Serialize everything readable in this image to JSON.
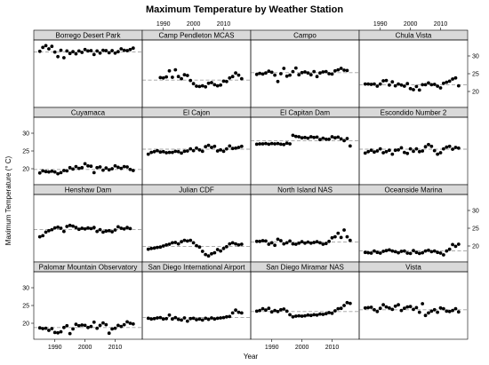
{
  "chart_data": {
    "type": "scatter",
    "title": "Maximum Temperature by Weather Station",
    "xlabel": "Year",
    "ylabel": "Maximum Temperature (° C)",
    "xlim": [
      1983,
      2019
    ],
    "ylim": [
      15.5,
      34.5
    ],
    "x_ticks": [
      1990,
      2000,
      2010
    ],
    "y_ticks": [
      20,
      25,
      30
    ],
    "layout": {
      "columns": 4,
      "rows": 4,
      "panel_order": "row-major from top-left"
    },
    "x": [
      1985,
      1986,
      1987,
      1988,
      1989,
      1990,
      1991,
      1992,
      1993,
      1994,
      1995,
      1996,
      1997,
      1998,
      1999,
      2000,
      2001,
      2002,
      2003,
      2004,
      2005,
      2006,
      2007,
      2008,
      2009,
      2010,
      2011,
      2012,
      2013,
      2014,
      2015,
      2016
    ],
    "panels": [
      {
        "name": "Borrego Desert Park",
        "mean": 31.1,
        "values": [
          31.3,
          32.4,
          32.9,
          32.0,
          32.7,
          31.1,
          29.8,
          31.6,
          29.5,
          31.4,
          30.7,
          31.2,
          30.6,
          31.4,
          31.0,
          31.8,
          31.4,
          31.5,
          30.4,
          31.4,
          30.8,
          31.6,
          31.5,
          30.9,
          31.5,
          30.8,
          31.2,
          32.0,
          31.6,
          31.5,
          31.8,
          32.2
        ]
      },
      {
        "name": "Camp Pendleton MCAS",
        "mean": 23.2,
        "values": [
          null,
          null,
          null,
          null,
          23.9,
          23.8,
          24.1,
          25.8,
          24.0,
          26.1,
          24.2,
          23.6,
          24.7,
          24.5,
          23.1,
          22.2,
          21.5,
          21.4,
          21.6,
          21.3,
          22.3,
          22.5,
          21.9,
          21.6,
          21.8,
          22.9,
          22.8,
          23.8,
          24.2,
          25.2,
          24.6,
          23.6
        ]
      },
      {
        "name": "Campo",
        "mean": 25.3,
        "values": [
          24.8,
          25.1,
          24.9,
          25.2,
          25.7,
          25.4,
          24.6,
          22.8,
          25.0,
          26.5,
          24.3,
          24.6,
          25.6,
          26.6,
          24.7,
          25.3,
          25.5,
          25.2,
          24.7,
          25.6,
          24.2,
          25.2,
          25.5,
          25.6,
          25.0,
          24.9,
          25.8,
          26.1,
          26.5,
          26.0,
          25.9,
          null
        ]
      },
      {
        "name": "Chula Vista",
        "mean": 21.9,
        "values": [
          22.1,
          22.1,
          22.0,
          22.1,
          21.5,
          22.1,
          23.0,
          23.1,
          21.8,
          22.7,
          21.6,
          22.1,
          21.8,
          21.5,
          22.2,
          20.8,
          20.5,
          21.4,
          20.4,
          21.9,
          21.9,
          22.4,
          21.9,
          22.0,
          21.5,
          21.0,
          22.3,
          22.6,
          22.9,
          23.5,
          23.8,
          21.6
        ]
      },
      {
        "name": "Cuyamaca",
        "mean": 19.8,
        "values": [
          18.8,
          19.4,
          19.2,
          19.1,
          19.3,
          19.1,
          18.6,
          18.9,
          19.5,
          19.4,
          20.3,
          19.9,
          20.6,
          20.1,
          20.3,
          21.4,
          20.8,
          20.7,
          18.9,
          20.3,
          20.5,
          19.6,
          20.2,
          19.7,
          20.0,
          20.8,
          20.4,
          20.1,
          20.6,
          20.5,
          19.8,
          19.5
        ]
      },
      {
        "name": "El Cajon",
        "mean": 25.5,
        "values": [
          24.1,
          24.6,
          24.8,
          25.1,
          24.7,
          24.8,
          24.5,
          24.6,
          24.6,
          24.9,
          24.8,
          24.4,
          24.9,
          25.0,
          25.6,
          25.1,
          25.8,
          25.3,
          24.9,
          26.2,
          26.6,
          26.0,
          26.3,
          25.0,
          25.3,
          24.9,
          25.6,
          26.4,
          25.7,
          25.8,
          26.0,
          26.3
        ]
      },
      {
        "name": "El Capitan Dam",
        "mean": 27.9,
        "values": [
          26.9,
          27.0,
          27.0,
          27.1,
          26.9,
          27.1,
          27.0,
          27.1,
          26.9,
          26.8,
          27.2,
          27.0,
          29.4,
          29.1,
          29.0,
          28.7,
          28.8,
          28.6,
          29.0,
          28.8,
          28.9,
          28.2,
          28.6,
          28.3,
          28.3,
          29.0,
          28.7,
          28.9,
          28.4,
          27.9,
          28.5,
          26.4
        ]
      },
      {
        "name": "Escondido Number 2",
        "mean": 25.5,
        "values": [
          24.4,
          24.8,
          25.2,
          24.7,
          25.0,
          25.6,
          24.5,
          24.8,
          25.2,
          24.1,
          25.2,
          25.3,
          25.9,
          24.6,
          24.3,
          25.6,
          24.9,
          25.6,
          24.8,
          25.0,
          26.2,
          26.8,
          26.3,
          25.1,
          24.1,
          24.5,
          25.6,
          26.1,
          26.3,
          25.5,
          26.0,
          25.8
        ]
      },
      {
        "name": "Henshaw Dam",
        "mean": 24.6,
        "values": [
          22.6,
          22.9,
          23.9,
          24.3,
          24.6,
          25.1,
          25.3,
          25.0,
          24.1,
          25.5,
          25.8,
          25.6,
          25.2,
          24.7,
          25.0,
          24.8,
          25.1,
          24.9,
          25.2,
          24.1,
          24.6,
          23.9,
          24.2,
          24.3,
          24.0,
          24.5,
          25.4,
          25.0,
          24.8,
          25.2,
          24.9,
          null
        ]
      },
      {
        "name": "Julian CDF",
        "mean": 19.9,
        "values": [
          19.1,
          19.3,
          19.4,
          19.6,
          19.7,
          20.0,
          20.3,
          20.5,
          20.9,
          21.0,
          20.6,
          21.2,
          21.6,
          21.4,
          21.6,
          20.9,
          20.1,
          19.7,
          18.5,
          17.6,
          17.2,
          17.8,
          18.1,
          19.0,
          18.6,
          19.3,
          19.8,
          20.6,
          20.9,
          20.6,
          20.3,
          20.5
        ]
      },
      {
        "name": "North Island NAS",
        "mean": 21.1,
        "values": [
          21.3,
          21.3,
          21.5,
          21.4,
          20.5,
          20.9,
          20.2,
          21.9,
          21.5,
          20.6,
          20.9,
          21.4,
          20.6,
          20.5,
          20.8,
          21.2,
          20.8,
          21.1,
          20.8,
          21.0,
          21.2,
          20.9,
          20.5,
          20.7,
          21.3,
          22.3,
          22.6,
          23.6,
          22.4,
          24.5,
          22.6,
          21.6
        ]
      },
      {
        "name": "Oceanside Marina",
        "mean": 18.6,
        "values": [
          18.2,
          18.1,
          18.0,
          18.6,
          18.2,
          18.0,
          18.5,
          18.7,
          18.9,
          18.6,
          18.4,
          18.1,
          18.5,
          18.6,
          18.0,
          17.9,
          18.7,
          18.2,
          17.9,
          18.1,
          18.6,
          18.8,
          18.4,
          18.6,
          18.2,
          18.0,
          17.5,
          18.6,
          19.1,
          20.4,
          19.9,
          20.5
        ]
      },
      {
        "name": "Palomar Mountain Observatory",
        "mean": 18.8,
        "values": [
          18.7,
          18.5,
          18.6,
          18.0,
          18.5,
          17.4,
          17.3,
          17.6,
          18.8,
          19.3,
          17.1,
          18.4,
          19.7,
          19.3,
          19.5,
          19.4,
          18.8,
          19.1,
          20.3,
          18.6,
          19.4,
          20.1,
          19.6,
          17.2,
          18.4,
          18.6,
          19.4,
          19.1,
          19.6,
          20.4,
          20.0,
          19.8
        ]
      },
      {
        "name": "San Diego International Airport",
        "mean": 21.6,
        "values": [
          21.4,
          21.2,
          21.3,
          21.5,
          21.6,
          21.2,
          21.3,
          22.3,
          21.2,
          21.6,
          21.1,
          20.9,
          21.5,
          20.6,
          21.3,
          21.4,
          21.0,
          21.2,
          20.9,
          21.4,
          21.1,
          21.5,
          21.2,
          21.4,
          21.5,
          21.6,
          21.8,
          21.9,
          22.9,
          23.7,
          23.1,
          22.9
        ]
      },
      {
        "name": "San Diego Miramar NAS",
        "mean": 23.3,
        "values": [
          23.4,
          23.6,
          24.1,
          23.7,
          24.2,
          23.2,
          23.6,
          23.3,
          23.8,
          24.0,
          23.4,
          22.4,
          21.8,
          22.0,
          22.1,
          22.0,
          22.1,
          22.3,
          22.2,
          22.4,
          22.3,
          22.6,
          22.5,
          22.7,
          23.0,
          22.8,
          23.5,
          24.1,
          24.2,
          25.0,
          25.8,
          25.6
        ]
      },
      {
        "name": "Vista",
        "mean": 23.8,
        "values": [
          24.3,
          24.4,
          24.5,
          23.8,
          23.3,
          24.2,
          25.2,
          24.6,
          24.3,
          23.9,
          24.8,
          25.2,
          23.6,
          24.2,
          24.6,
          24.7,
          23.9,
          24.4,
          23.1,
          25.5,
          22.2,
          22.9,
          23.4,
          23.8,
          23.1,
          24.3,
          24.1,
          23.4,
          23.3,
          23.6,
          24.1,
          23.2
        ]
      }
    ]
  }
}
